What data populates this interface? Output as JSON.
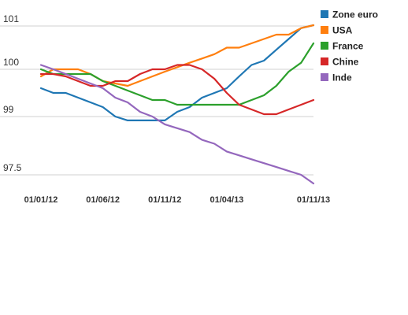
{
  "chart_data": {
    "type": "line",
    "title": "",
    "xlabel": "",
    "ylabel": "",
    "x": [
      "01/2012",
      "02/2012",
      "03/2012",
      "04/2012",
      "05/2012",
      "06/2012",
      "07/2012",
      "08/2012",
      "09/2012",
      "10/2012",
      "11/2012",
      "12/2012",
      "01/2013",
      "02/2013",
      "03/2013",
      "04/2013",
      "05/2013",
      "06/2013",
      "07/2013",
      "08/2013",
      "09/2013",
      "10/2013",
      "11/2013"
    ],
    "x_ticks": [
      {
        "at": "01/2012",
        "label": "01/01/12"
      },
      {
        "at": "06/2012",
        "label": "01/06/12"
      },
      {
        "at": "11/2012",
        "label": "01/11/12"
      },
      {
        "at": "04/2013",
        "label": "01/04/13"
      },
      {
        "at": "11/2013",
        "label": "01/11/13"
      }
    ],
    "y_ticks": [
      {
        "value": 97.5,
        "label": "97.5"
      },
      {
        "value": 99,
        "label": "99"
      },
      {
        "value": 100,
        "label": "100"
      },
      {
        "value": 101,
        "label": "101"
      }
    ],
    "grid": true,
    "legend": "top-right",
    "series": [
      {
        "name": "Zone euro",
        "color": "#1f77b4",
        "values": [
          99.6,
          99.5,
          99.5,
          99.4,
          99.3,
          99.2,
          99.0,
          98.9,
          98.9,
          98.9,
          98.9,
          99.1,
          99.2,
          99.4,
          99.5,
          99.6,
          99.85,
          100.1,
          100.2,
          100.45,
          100.7,
          100.95,
          101.2
        ]
      },
      {
        "name": "USA",
        "color": "#ff7f0e",
        "values": [
          99.85,
          100.0,
          100.0,
          100.0,
          99.9,
          99.75,
          99.7,
          99.65,
          99.75,
          99.85,
          99.95,
          100.05,
          100.15,
          100.25,
          100.35,
          100.5,
          100.5,
          100.6,
          100.7,
          100.8,
          100.8,
          100.95,
          101.2
        ]
      },
      {
        "name": "France",
        "color": "#2ca02c",
        "values": [
          100.0,
          99.9,
          99.9,
          99.9,
          99.9,
          99.75,
          99.65,
          99.55,
          99.45,
          99.35,
          99.35,
          99.25,
          99.25,
          99.25,
          99.25,
          99.25,
          99.25,
          99.35,
          99.45,
          99.65,
          99.95,
          100.15,
          100.6
        ]
      },
      {
        "name": "Chine",
        "color": "#d62728",
        "values": [
          99.9,
          99.9,
          99.85,
          99.75,
          99.65,
          99.65,
          99.75,
          99.75,
          99.9,
          100.0,
          100.0,
          100.1,
          100.1,
          100.0,
          99.8,
          99.5,
          99.25,
          99.15,
          99.05,
          99.05,
          99.15,
          99.25,
          99.35
        ]
      },
      {
        "name": "Inde",
        "color": "#9467bd",
        "values": [
          100.1,
          100.0,
          99.9,
          99.8,
          99.7,
          99.6,
          99.4,
          99.3,
          99.1,
          99.0,
          98.8,
          98.7,
          98.6,
          98.4,
          98.3,
          98.1,
          98.0,
          97.9,
          97.8,
          97.7,
          97.6,
          97.5,
          97.4
        ]
      }
    ]
  }
}
